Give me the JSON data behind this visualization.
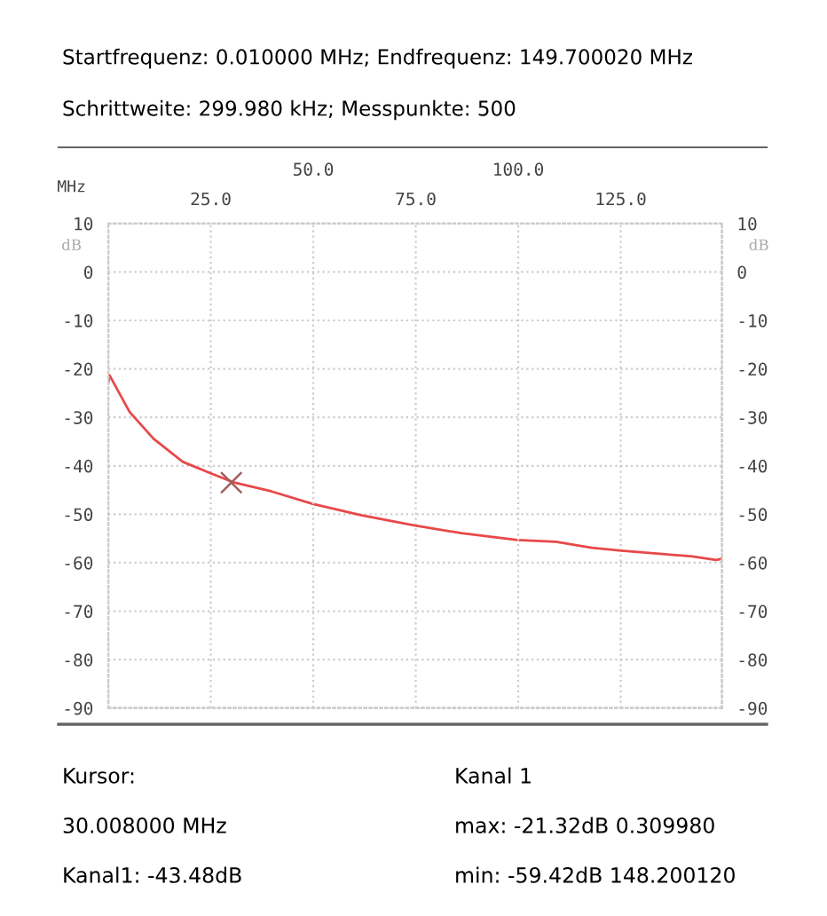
{
  "chart_data": {
    "type": "line",
    "title": "Startfrequenz: 0.010000 MHz; Endfrequenz: 149.700020 MHz",
    "subtitle": "Schrittweite: 299.980 kHz; Messpunkte: 500",
    "xlabel": "MHz",
    "ylabel": "dB",
    "y2label": "dB",
    "series": [
      {
        "color": "#e84848",
        "x": [
          0.01,
          0.31,
          5.2,
          11.0,
          18.2,
          25.4,
          30.5,
          39.9,
          49.6,
          61.6,
          74.6,
          86.1,
          99.8,
          109.2,
          117.9,
          125.1,
          133.8,
          142.5,
          148.2,
          149.7
        ],
        "values": [
          -22.8,
          -21.32,
          -28.9,
          -34.4,
          -39.2,
          -41.7,
          -43.4,
          -45.3,
          -47.8,
          -50.2,
          -52.3,
          -53.9,
          -55.3,
          -55.7,
          -56.9,
          -57.5,
          -58.1,
          -58.7,
          -59.42,
          -59.2
        ]
      },
      {
        "type": "scatter",
        "marker": "cross",
        "color": "#a06060",
        "x": [
          30.008
        ],
        "values": [
          -43.48
        ]
      }
    ],
    "xlim": [
      0.01,
      149.7
    ],
    "xticks": [
      {
        "value": 25,
        "label": "25.0"
      },
      {
        "value": 75,
        "label": "75.0"
      },
      {
        "value": 125,
        "label": "125.0"
      }
    ],
    "x2lim": [
      0.01,
      149.7
    ],
    "x2ticks": [
      {
        "value": 50,
        "label": "50.0"
      },
      {
        "value": 100,
        "label": "100.0"
      }
    ],
    "ylim": [
      -90,
      10
    ],
    "yticks": [
      10,
      0,
      -10,
      -20,
      -30,
      -40,
      -50,
      -60,
      -70,
      -80,
      -90
    ],
    "y2lim": [
      -90,
      10
    ],
    "y2ticks": [
      10,
      0,
      -10,
      -20,
      -30,
      -40,
      -50,
      -60,
      -70,
      -80,
      -90
    ],
    "grid": true,
    "line_style": "solid",
    "annotations": [
      "Kursor:",
      "30.008000 MHz",
      "Kanal1: -43.48dB",
      "Kanal 1",
      "max: -21.32dB 0.309980",
      "min: -59.42dB 148.200120"
    ]
  }
}
